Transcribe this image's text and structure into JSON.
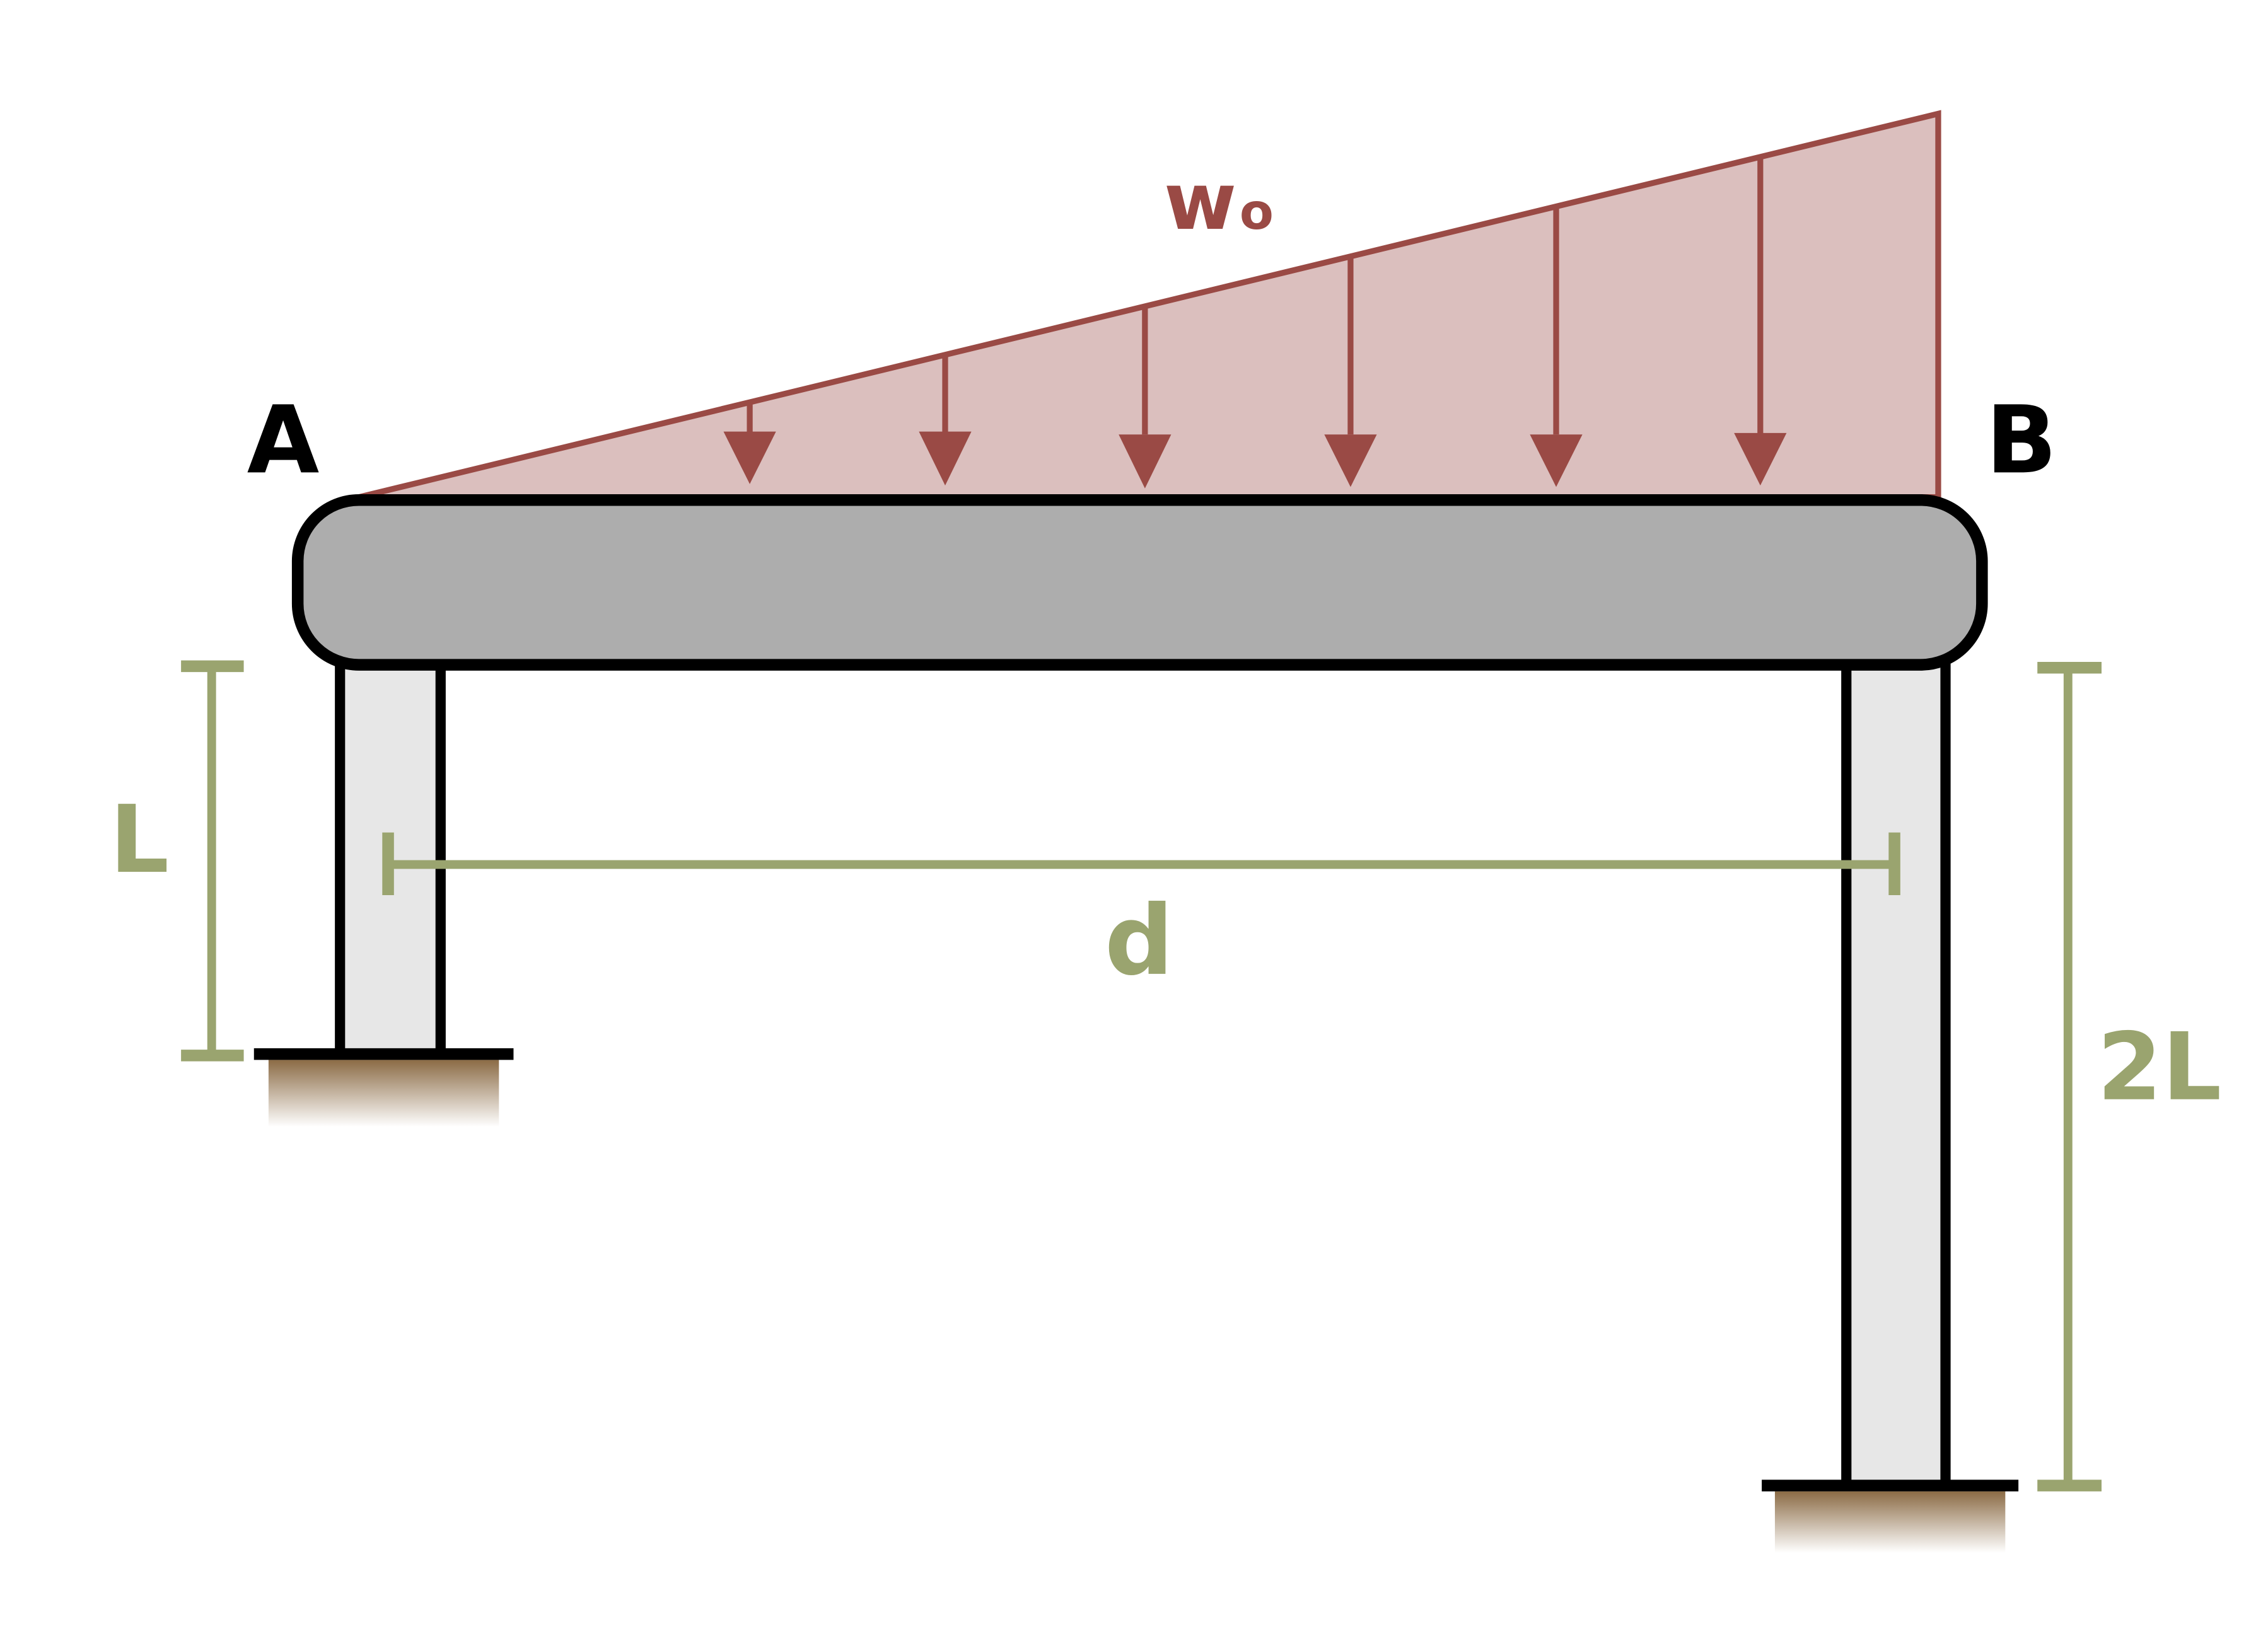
{
  "labels": {
    "load_intensity": "w",
    "load_intensity_subscript": "o",
    "end_a": "A",
    "end_b": "B",
    "left_height": "L",
    "right_height": "2L",
    "span": "d"
  },
  "colors": {
    "load_fill": "#dbbfbe",
    "load_stroke": "#9a4a45",
    "beam_fill": "#adadad",
    "column_fill": "#e7e7e7",
    "outline": "#000000",
    "dimension": "#9aa46f",
    "ground": "#8b6b45",
    "text_dark": "#000000"
  },
  "icons": {
    "load_arrow": "down-arrow-icon",
    "support_ground": "ground-hatch-icon"
  }
}
